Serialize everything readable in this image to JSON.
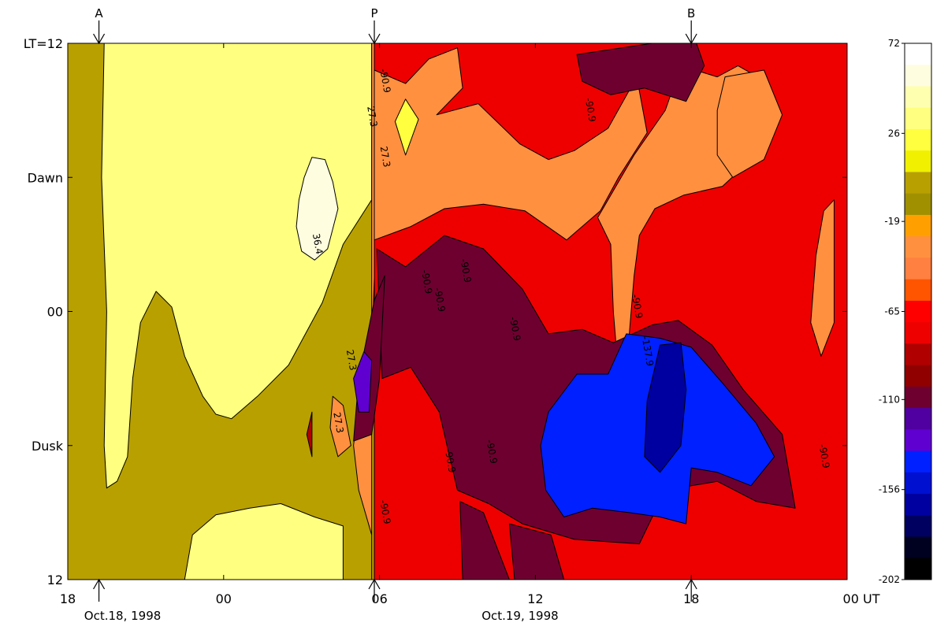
{
  "chart_data": {
    "type": "heatmap",
    "title": "",
    "xlabel": "",
    "ylabel": "",
    "x_ticks": [
      "18",
      "00",
      "06",
      "12",
      "18",
      "00 UT"
    ],
    "x_tick_hours": [
      18,
      24,
      30,
      36,
      42,
      48
    ],
    "xlim_hours": [
      18,
      48
    ],
    "date_labels": [
      {
        "text": "Oct.18, 1998",
        "hour": 19.2
      },
      {
        "text": "Oct.19, 1998",
        "hour": 34.5
      }
    ],
    "y_ticks": [
      "LT=12",
      "Dawn",
      "00",
      "Dusk",
      "12"
    ],
    "y_tick_lt": [
      12,
      6,
      0,
      -6,
      -12
    ],
    "ylim_lt": [
      -12,
      12
    ],
    "markers": [
      {
        "label": "A",
        "hour": 19.2
      },
      {
        "label": "P",
        "hour": 29.8
      },
      {
        "label": "B",
        "hour": 42.0
      }
    ],
    "colorbar": {
      "ticks": [
        "72",
        "26",
        "-19",
        "-65",
        "-110",
        "-156",
        "-202"
      ],
      "tick_values": [
        72,
        26,
        -19,
        -65,
        -110,
        -156,
        -202
      ],
      "range": [
        -202,
        72
      ],
      "levels": [
        {
          "value": 72,
          "color": "#ffffff"
        },
        {
          "value": 61,
          "color": "#fffde0"
        },
        {
          "value": 49,
          "color": "#ffffb0"
        },
        {
          "value": 38,
          "color": "#ffff80"
        },
        {
          "value": 26,
          "color": "#ffff40"
        },
        {
          "value": 15,
          "color": "#f0f000"
        },
        {
          "value": 4,
          "color": "#b8a000"
        },
        {
          "value": -8,
          "color": "#a09000"
        },
        {
          "value": -19,
          "color": "#ffa000"
        },
        {
          "value": -31,
          "color": "#ff9040"
        },
        {
          "value": -42,
          "color": "#ff8040"
        },
        {
          "value": -54,
          "color": "#ff5500"
        },
        {
          "value": -65,
          "color": "#ff0000"
        },
        {
          "value": -76,
          "color": "#ee0000"
        },
        {
          "value": -88,
          "color": "#b00000"
        },
        {
          "value": -99,
          "color": "#900000"
        },
        {
          "value": -110,
          "color": "#6e0030"
        },
        {
          "value": -122,
          "color": "#5000a0"
        },
        {
          "value": -133,
          "color": "#6000d0"
        },
        {
          "value": -145,
          "color": "#0020ff"
        },
        {
          "value": -156,
          "color": "#0010d0"
        },
        {
          "value": -168,
          "color": "#0000a0"
        },
        {
          "value": -179,
          "color": "#000060"
        },
        {
          "value": -190,
          "color": "#000020"
        },
        {
          "value": -202,
          "color": "#000000"
        }
      ]
    },
    "contour_labels": [
      {
        "text": "36.4",
        "hour": 27.5,
        "lt": 3.0
      },
      {
        "text": "27.3",
        "hour": 28.8,
        "lt": -2.2
      },
      {
        "text": "27.3",
        "hour": 30.1,
        "lt": 6.9
      },
      {
        "text": "27.3",
        "hour": 29.6,
        "lt": 8.7
      },
      {
        "text": "27.3",
        "hour": 28.3,
        "lt": -5.0
      },
      {
        "text": "-90.9",
        "hour": 30.1,
        "lt": 10.3
      },
      {
        "text": "-90.9",
        "hour": 31.7,
        "lt": 1.3
      },
      {
        "text": "-90.9",
        "hour": 32.2,
        "lt": 0.5
      },
      {
        "text": "-90.9",
        "hour": 33.2,
        "lt": 1.8
      },
      {
        "text": "-90.9",
        "hour": 35.1,
        "lt": -0.8
      },
      {
        "text": "-90.9",
        "hour": 38.0,
        "lt": 9.0
      },
      {
        "text": "-90.9",
        "hour": 39.8,
        "lt": 0.2
      },
      {
        "text": "-137.9",
        "hour": 40.2,
        "lt": -1.8
      },
      {
        "text": "-90.9",
        "hour": 34.2,
        "lt": -6.3
      },
      {
        "text": "-90.9",
        "hour": 32.6,
        "lt": -6.7
      },
      {
        "text": "-90.9",
        "hour": 30.1,
        "lt": -9.0
      },
      {
        "text": "-90.9",
        "hour": 47.0,
        "lt": -6.5
      }
    ],
    "regions": [
      {
        "level": 4,
        "pts": [
          [
            18,
            12
          ],
          [
            48,
            12
          ],
          [
            48,
            -12
          ],
          [
            18,
            -12
          ]
        ]
      },
      {
        "level": 38,
        "pts": [
          [
            19.4,
            12
          ],
          [
            29.7,
            12
          ],
          [
            29.7,
            5
          ],
          [
            28.6,
            3
          ],
          [
            27.8,
            0.4
          ],
          [
            26.5,
            -2.4
          ],
          [
            25.3,
            -3.8
          ],
          [
            24.3,
            -4.8
          ],
          [
            23.7,
            -4.6
          ],
          [
            23.2,
            -3.8
          ],
          [
            22.5,
            -2.0
          ],
          [
            22.0,
            0.2
          ],
          [
            21.4,
            0.9
          ],
          [
            20.8,
            -0.5
          ],
          [
            20.5,
            -3
          ],
          [
            20.3,
            -6.5
          ],
          [
            19.9,
            -7.6
          ],
          [
            19.5,
            -7.9
          ],
          [
            19.4,
            -6
          ],
          [
            19.5,
            0
          ],
          [
            19.3,
            6
          ]
        ]
      },
      {
        "level": 38,
        "pts": [
          [
            22.5,
            -12
          ],
          [
            28.6,
            -12
          ],
          [
            28.6,
            -9.6
          ],
          [
            27.5,
            -9.2
          ],
          [
            26.2,
            -8.6
          ],
          [
            25,
            -8.8
          ],
          [
            23.7,
            -9.1
          ],
          [
            22.8,
            -10
          ]
        ]
      },
      {
        "level": 61,
        "pts": [
          [
            28.4,
            4.6
          ],
          [
            28.2,
            5.8
          ],
          [
            27.9,
            6.8
          ],
          [
            27.4,
            6.9
          ],
          [
            27.1,
            6.0
          ],
          [
            26.9,
            5.0
          ],
          [
            26.8,
            3.8
          ],
          [
            27.0,
            2.7
          ],
          [
            27.5,
            2.3
          ],
          [
            28.0,
            2.8
          ]
        ]
      },
      {
        "level": -31,
        "pts": [
          [
            29.7,
            12
          ],
          [
            30.1,
            12
          ],
          [
            29.7,
            -2
          ],
          [
            29.2,
            -4
          ],
          [
            29.0,
            -6
          ],
          [
            29.2,
            -8
          ],
          [
            29.7,
            -10
          ],
          [
            29.7,
            -12
          ],
          [
            29.7,
            -12
          ]
        ]
      },
      {
        "level": -76,
        "pts": [
          [
            29.8,
            12
          ],
          [
            48,
            12
          ],
          [
            48,
            -12
          ],
          [
            29.8,
            -12
          ]
        ]
      },
      {
        "level": -31,
        "pts": [
          [
            29.8,
            10.8
          ],
          [
            31.0,
            10.2
          ],
          [
            31.9,
            11.3
          ],
          [
            33.0,
            11.8
          ],
          [
            33.2,
            10
          ],
          [
            32.2,
            8.8
          ],
          [
            33.8,
            9.3
          ],
          [
            35.4,
            7.5
          ],
          [
            36.5,
            6.8
          ],
          [
            37.5,
            7.2
          ],
          [
            38.8,
            8.2
          ],
          [
            39.9,
            10.5
          ],
          [
            40.3,
            8
          ],
          [
            39.2,
            6.0
          ],
          [
            38.5,
            4.5
          ],
          [
            37.2,
            3.2
          ],
          [
            35.6,
            4.5
          ],
          [
            34.0,
            4.8
          ],
          [
            32.5,
            4.6
          ],
          [
            31.2,
            3.8
          ],
          [
            29.8,
            3.2
          ]
        ]
      },
      {
        "level": -31,
        "pts": [
          [
            38.4,
            4.2
          ],
          [
            38.9,
            3.0
          ],
          [
            39.0,
            0.0
          ],
          [
            39.2,
            -2.8
          ],
          [
            39.6,
            -1.2
          ],
          [
            39.8,
            1.6
          ],
          [
            40.0,
            3.4
          ],
          [
            40.6,
            4.6
          ],
          [
            41.7,
            5.2
          ],
          [
            43.2,
            5.6
          ],
          [
            44.5,
            7.0
          ],
          [
            45.3,
            8.5
          ],
          [
            45.0,
            10.2
          ],
          [
            43.8,
            11.0
          ],
          [
            43.0,
            10.5
          ],
          [
            41.6,
            11.0
          ],
          [
            41.0,
            9.0
          ],
          [
            39.8,
            7.0
          ]
        ]
      },
      {
        "level": -31,
        "pts": [
          [
            43.3,
            10.5
          ],
          [
            44.8,
            10.8
          ],
          [
            45.5,
            8.8
          ],
          [
            44.8,
            6.8
          ],
          [
            43.6,
            6.0
          ],
          [
            43.0,
            7.0
          ],
          [
            43.0,
            9.0
          ]
        ]
      },
      {
        "level": -31,
        "pts": [
          [
            47.1,
            4.5
          ],
          [
            47.5,
            5.0
          ],
          [
            47.5,
            -0.5
          ],
          [
            47.0,
            -2
          ],
          [
            46.6,
            -0.5
          ],
          [
            46.8,
            2.5
          ]
        ]
      },
      {
        "level": -110,
        "pts": [
          [
            29.9,
            2.8
          ],
          [
            31.0,
            2.0
          ],
          [
            32.5,
            3.4
          ],
          [
            34.0,
            2.8
          ],
          [
            35.5,
            1.0
          ],
          [
            36.5,
            -1.0
          ],
          [
            37.8,
            -0.8
          ],
          [
            39.0,
            -1.4
          ],
          [
            40.5,
            -0.6
          ],
          [
            41.5,
            -0.4
          ],
          [
            42.8,
            -1.5
          ],
          [
            44.0,
            -3.5
          ],
          [
            45.5,
            -5.5
          ],
          [
            46.0,
            -8.8
          ],
          [
            44.5,
            -8.5
          ],
          [
            43.0,
            -7.6
          ],
          [
            41.0,
            -8.0
          ],
          [
            40.0,
            -10.4
          ],
          [
            37.5,
            -10.2
          ],
          [
            35.5,
            -9.5
          ],
          [
            34.2,
            -8.6
          ],
          [
            33.0,
            -8.0
          ],
          [
            32.3,
            -4.5
          ],
          [
            31.2,
            -2.5
          ],
          [
            30.1,
            -3.0
          ]
        ]
      },
      {
        "level": -110,
        "pts": [
          [
            33.1,
            -8.5
          ],
          [
            34.0,
            -9.0
          ],
          [
            35.0,
            -12
          ],
          [
            33.2,
            -12
          ]
        ]
      },
      {
        "level": -110,
        "pts": [
          [
            35.0,
            -9.5
          ],
          [
            36.6,
            -10.0
          ],
          [
            37.1,
            -12
          ],
          [
            35.2,
            -12
          ]
        ]
      },
      {
        "level": -110,
        "pts": [
          [
            37.6,
            11.5
          ],
          [
            40.5,
            12
          ],
          [
            42.2,
            12
          ],
          [
            42.5,
            11.0
          ],
          [
            41.8,
            9.4
          ],
          [
            40.2,
            10.0
          ],
          [
            38.9,
            9.7
          ],
          [
            37.8,
            10.3
          ]
        ]
      },
      {
        "level": -110,
        "pts": [
          [
            29.8,
            0.5
          ],
          [
            30.2,
            1.6
          ],
          [
            30.0,
            -3.0
          ],
          [
            29.7,
            -5.5
          ],
          [
            29.0,
            -5.8
          ],
          [
            29.2,
            -3.0
          ]
        ]
      },
      {
        "level": -145,
        "pts": [
          [
            36.5,
            -4.5
          ],
          [
            37.6,
            -2.8
          ],
          [
            38.8,
            -2.8
          ],
          [
            39.5,
            -1.0
          ],
          [
            40.8,
            -1.2
          ],
          [
            42.0,
            -1.6
          ],
          [
            43.2,
            -3.2
          ],
          [
            44.5,
            -5.0
          ],
          [
            45.2,
            -6.5
          ],
          [
            44.3,
            -7.8
          ],
          [
            43.0,
            -7.2
          ],
          [
            42.0,
            -7.0
          ],
          [
            41.8,
            -9.5
          ],
          [
            40.8,
            -9.2
          ],
          [
            39.6,
            -9.0
          ],
          [
            38.2,
            -8.8
          ],
          [
            37.1,
            -9.2
          ],
          [
            36.4,
            -8.0
          ],
          [
            36.2,
            -6.0
          ]
        ]
      },
      {
        "level": -168,
        "pts": [
          [
            40.8,
            -1.5
          ],
          [
            41.6,
            -1.4
          ],
          [
            41.8,
            -3.5
          ],
          [
            41.6,
            -6.0
          ],
          [
            40.8,
            -7.2
          ],
          [
            40.2,
            -6.5
          ],
          [
            40.3,
            -4.0
          ]
        ]
      },
      {
        "level": -133,
        "pts": [
          [
            29.4,
            -1.8
          ],
          [
            29.7,
            -2.2
          ],
          [
            29.6,
            -4.5
          ],
          [
            29.2,
            -4.5
          ],
          [
            29.0,
            -3.0
          ]
        ]
      },
      {
        "level": 26,
        "pts": [
          [
            31.0,
            7.0
          ],
          [
            31.5,
            8.6
          ],
          [
            31.0,
            9.5
          ],
          [
            30.6,
            8.5
          ]
        ]
      },
      {
        "level": -88,
        "pts": [
          [
            27.2,
            -5.5
          ],
          [
            27.4,
            -4.5
          ],
          [
            27.4,
            -6.5
          ]
        ]
      },
      {
        "level": -31,
        "pts": [
          [
            28.2,
            -3.8
          ],
          [
            28.6,
            -4.2
          ],
          [
            28.9,
            -6.0
          ],
          [
            28.4,
            -6.5
          ],
          [
            28.1,
            -5.2
          ]
        ]
      }
    ]
  }
}
